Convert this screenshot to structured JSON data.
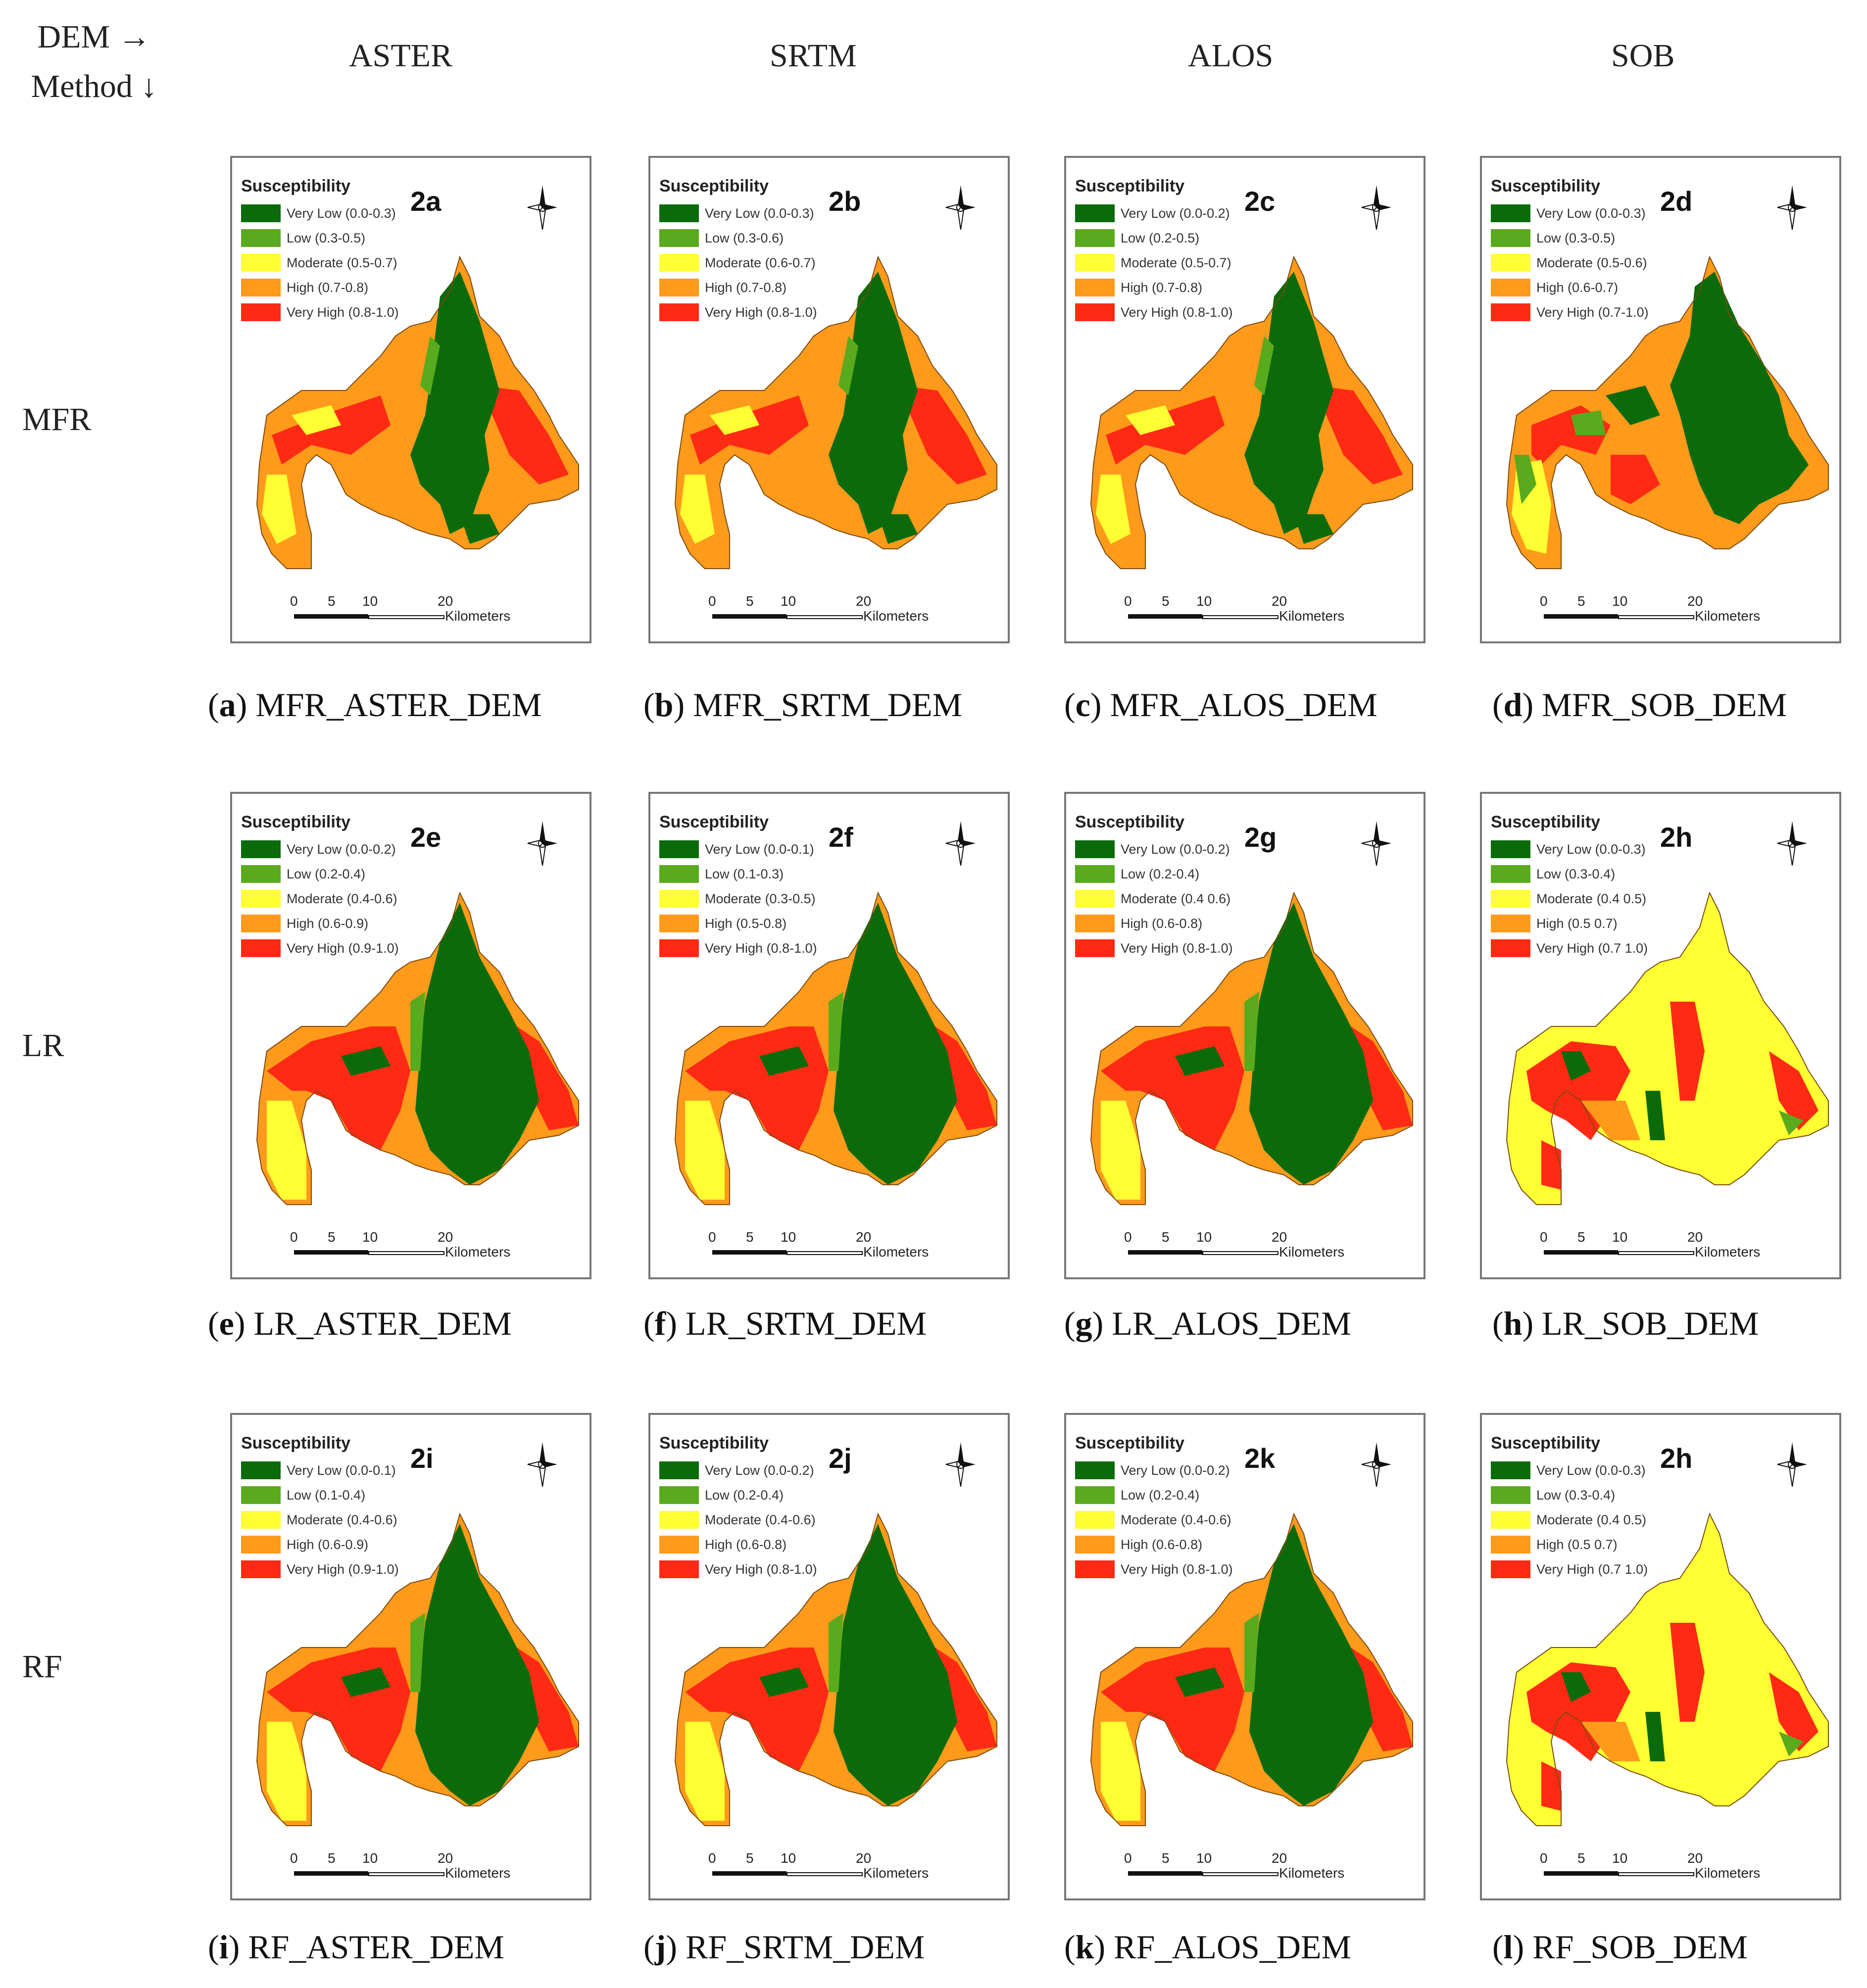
{
  "corner": {
    "line1": "DEM →",
    "line2": "Method ↓"
  },
  "column_headers": [
    "ASTER",
    "SRTM",
    "ALOS",
    "SOB"
  ],
  "row_labels": [
    "MFR",
    "LR",
    "RF"
  ],
  "legend_title": "Susceptibility",
  "scale": {
    "ticks": [
      "0",
      "5",
      "10",
      "20"
    ],
    "unit": "Kilometers"
  },
  "class_colors": {
    "very_low": "#0b6b0b",
    "low": "#5aaa1e",
    "moderate": "#ffff33",
    "high": "#ff9a1a",
    "very_high": "#ff2a14"
  },
  "panels": [
    {
      "tag": "2a",
      "cap_letter": "a",
      "cap_text": "MFR_ASTER_DEM",
      "legend": [
        "Very Low (0.0-0.3)",
        "Low (0.3-0.5)",
        "Moderate (0.5-0.7)",
        "High (0.7-0.8)",
        "Very High (0.8-1.0)"
      ]
    },
    {
      "tag": "2b",
      "cap_letter": "b",
      "cap_text": "MFR_SRTM_DEM",
      "legend": [
        "Very Low (0.0-0.3)",
        "Low (0.3-0.6)",
        "Moderate (0.6-0.7)",
        "High (0.7-0.8)",
        "Very High (0.8-1.0)"
      ]
    },
    {
      "tag": "2c",
      "cap_letter": "c",
      "cap_text": "MFR_ALOS_DEM",
      "legend": [
        "Very Low (0.0-0.2)",
        "Low (0.2-0.5)",
        "Moderate (0.5-0.7)",
        "High (0.7-0.8)",
        "Very High (0.8-1.0)"
      ]
    },
    {
      "tag": "2d",
      "cap_letter": "d",
      "cap_text": "MFR_SOB_DEM",
      "legend": [
        "Very Low (0.0-0.3)",
        "Low (0.3-0.5)",
        "Moderate (0.5-0.6)",
        "High (0.6-0.7)",
        "Very High (0.7-1.0)"
      ]
    },
    {
      "tag": "2e",
      "cap_letter": "e",
      "cap_text": "LR_ASTER_DEM",
      "legend": [
        "Very Low (0.0-0.2)",
        "Low (0.2-0.4)",
        "Moderate (0.4-0.6)",
        "High (0.6-0.9)",
        "Very High (0.9-1.0)"
      ]
    },
    {
      "tag": "2f",
      "cap_letter": "f",
      "cap_text": "LR_SRTM_DEM",
      "legend": [
        "Very Low (0.0-0.1)",
        "Low (0.1-0.3)",
        "Moderate (0.3-0.5)",
        "High (0.5-0.8)",
        "Very High (0.8-1.0)"
      ]
    },
    {
      "tag": "2g",
      "cap_letter": "g",
      "cap_text": "LR_ALOS_DEM",
      "legend": [
        "Very Low (0.0-0.2)",
        "Low (0.2-0.4)",
        "Moderate (0.4 0.6)",
        "High (0.6-0.8)",
        "Very High (0.8-1.0)"
      ]
    },
    {
      "tag": "2h",
      "cap_letter": "h",
      "cap_text": "LR_SOB_DEM",
      "legend": [
        "Very Low (0.0-0.3)",
        "Low (0.3-0.4)",
        "Moderate (0.4 0.5)",
        "High (0.5 0.7)",
        "Very High (0.7 1.0)"
      ]
    },
    {
      "tag": "2i",
      "cap_letter": "i",
      "cap_text": "RF_ASTER_DEM",
      "legend": [
        "Very Low (0.0-0.1)",
        "Low (0.1-0.4)",
        "Moderate (0.4-0.6)",
        "High (0.6-0.9)",
        "Very High (0.9-1.0)"
      ]
    },
    {
      "tag": "2j",
      "cap_letter": "j",
      "cap_text": "RF_SRTM_DEM",
      "legend": [
        "Very Low (0.0-0.2)",
        "Low (0.2-0.4)",
        "Moderate (0.4-0.6)",
        "High (0.6-0.8)",
        "Very High (0.8-1.0)"
      ]
    },
    {
      "tag": "2k",
      "cap_letter": "k",
      "cap_text": "RF_ALOS_DEM",
      "legend": [
        "Very Low (0.0-0.2)",
        "Low (0.2-0.4)",
        "Moderate (0.4-0.6)",
        "High (0.6-0.8)",
        "Very High (0.8-1.0)"
      ]
    },
    {
      "tag": "2h",
      "cap_letter": "l",
      "cap_text": "RF_SOB_DEM",
      "legend": [
        "Very Low (0.0-0.3)",
        "Low (0.3-0.4)",
        "Moderate (0.4 0.5)",
        "High (0.5 0.7)",
        "Very High (0.7 1.0)"
      ]
    }
  ]
}
